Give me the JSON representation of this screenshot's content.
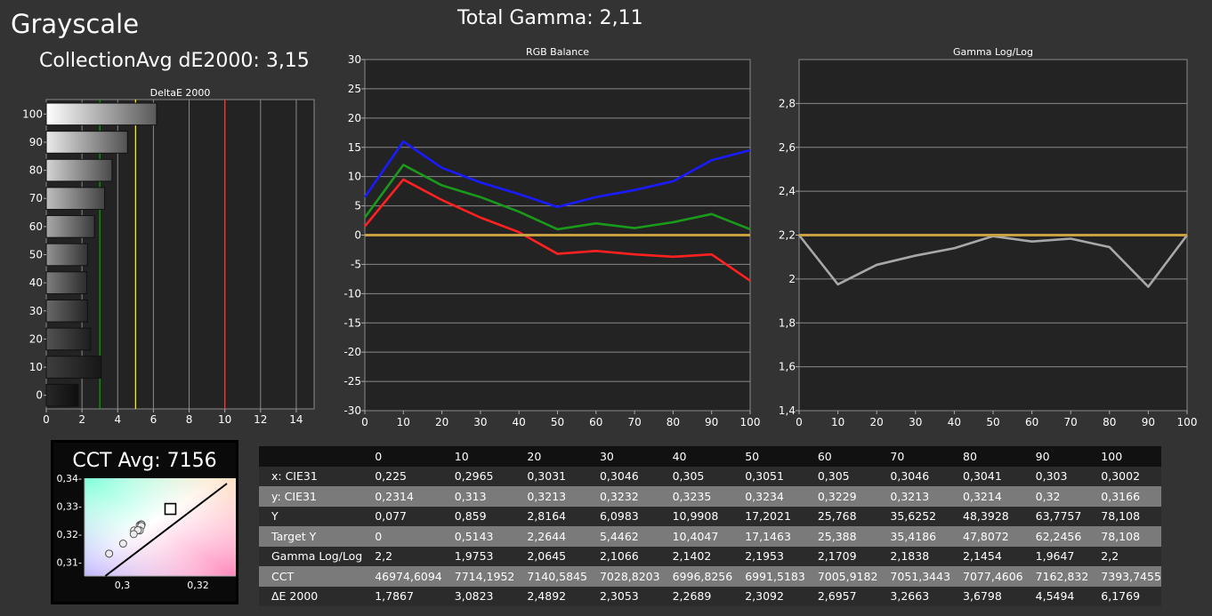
{
  "header": {
    "title": "Grayscale",
    "collection": "CollectionAvg dE2000: 3,15",
    "total_gamma": "Total Gamma: 2,11"
  },
  "colors": {
    "red": "#ff2020",
    "green": "#1a9a1a",
    "blue": "#1a1aff",
    "target": "#c8a040",
    "gamma_line": "#a8a8a8",
    "threshold_green": "#00aa00",
    "threshold_yellow": "#ffff00",
    "threshold_red": "#ff3030"
  },
  "chart_data": [
    {
      "type": "bar",
      "title": "DeltaE 2000",
      "orientation": "horizontal",
      "categories": [
        "100",
        "90",
        "80",
        "70",
        "60",
        "50",
        "40",
        "30",
        "20",
        "10",
        "0"
      ],
      "values": [
        6.1769,
        4.5494,
        3.6798,
        3.2663,
        2.6957,
        2.3092,
        2.2689,
        2.3053,
        2.4892,
        3.0823,
        1.7867
      ],
      "xlim": [
        0,
        15
      ],
      "xticks": [
        0,
        2,
        4,
        6,
        8,
        10,
        12,
        14
      ],
      "thresholds": [
        3,
        5,
        10
      ],
      "grid": true
    },
    {
      "type": "line",
      "title": "RGB Balance",
      "x": [
        0,
        10,
        20,
        30,
        40,
        50,
        60,
        70,
        80,
        90,
        100
      ],
      "ylim": [
        -30,
        30
      ],
      "yticks": [
        -30,
        -25,
        -20,
        -15,
        -10,
        -5,
        0,
        5,
        10,
        15,
        20,
        25,
        30
      ],
      "grid": true,
      "series": [
        {
          "color": "red",
          "values": [
            1.5,
            9.5,
            6,
            3,
            0.5,
            -3.2,
            -2.7,
            -3.3,
            -3.7,
            -3.3,
            -7.8
          ]
        },
        {
          "color": "green",
          "values": [
            3,
            12,
            8.5,
            6.5,
            4,
            1,
            2,
            1.2,
            2.2,
            3.6,
            1
          ]
        },
        {
          "color": "blue",
          "values": [
            6.5,
            16,
            11.5,
            9,
            7,
            4.8,
            6.5,
            7.7,
            9.2,
            12.8,
            14.5
          ]
        },
        {
          "color": "target",
          "values": [
            0,
            0,
            0,
            0,
            0,
            0,
            0,
            0,
            0,
            0,
            0
          ]
        }
      ]
    },
    {
      "type": "line",
      "title": "Gamma Log/Log",
      "x": [
        0,
        10,
        20,
        30,
        40,
        50,
        60,
        70,
        80,
        90,
        100
      ],
      "ylim": [
        1.4,
        3.0
      ],
      "yticks": [
        1.4,
        1.6,
        1.8,
        2.0,
        2.2,
        2.4,
        2.6,
        2.8
      ],
      "ytick_labels": [
        "1,4",
        "1,6",
        "1,8",
        "2",
        "2,2",
        "2,4",
        "2,6",
        "2,8"
      ],
      "grid": true,
      "series": [
        {
          "color": "gamma_line",
          "values": [
            2.2,
            1.9753,
            2.0645,
            2.1066,
            2.1402,
            2.1953,
            2.1709,
            2.1838,
            2.1454,
            1.9647,
            2.2
          ]
        },
        {
          "color": "target",
          "values": [
            2.2,
            2.2,
            2.2,
            2.2,
            2.2,
            2.2,
            2.2,
            2.2,
            2.2,
            2.2,
            2.2
          ]
        }
      ]
    },
    {
      "type": "scatter",
      "title": "CCT Avg: 7156",
      "xlim": [
        0.29,
        0.33
      ],
      "ylim": [
        0.305,
        0.34
      ],
      "xticks": [
        0.3,
        0.32
      ],
      "xtick_labels": [
        "0,3",
        "0,32"
      ],
      "yticks": [
        0.31,
        0.32,
        0.33,
        0.34
      ],
      "ytick_labels": [
        "0,31-",
        "0,32-",
        "0,33-",
        "0,34-"
      ],
      "points": [
        {
          "x": 0.2965,
          "y": 0.313
        },
        {
          "x": 0.3031,
          "y": 0.3213
        },
        {
          "x": 0.3046,
          "y": 0.3232
        },
        {
          "x": 0.305,
          "y": 0.3235
        },
        {
          "x": 0.3051,
          "y": 0.3234
        },
        {
          "x": 0.305,
          "y": 0.3229
        },
        {
          "x": 0.3046,
          "y": 0.3213
        },
        {
          "x": 0.3041,
          "y": 0.3214
        },
        {
          "x": 0.303,
          "y": 0.32
        },
        {
          "x": 0.3002,
          "y": 0.3166
        },
        {
          "x": 0.2965,
          "y": 0.313
        }
      ],
      "target": {
        "x": 0.3127,
        "y": 0.329
      }
    }
  ],
  "table": {
    "headers": [
      "",
      "0",
      "10",
      "20",
      "30",
      "40",
      "50",
      "60",
      "70",
      "80",
      "90",
      "100"
    ],
    "rows": [
      [
        "x: CIE31",
        "0,225",
        "0,2965",
        "0,3031",
        "0,3046",
        "0,305",
        "0,3051",
        "0,305",
        "0,3046",
        "0,3041",
        "0,303",
        "0,3002"
      ],
      [
        "y: CIE31",
        "0,2314",
        "0,313",
        "0,3213",
        "0,3232",
        "0,3235",
        "0,3234",
        "0,3229",
        "0,3213",
        "0,3214",
        "0,32",
        "0,3166"
      ],
      [
        "Y",
        "0,077",
        "0,859",
        "2,8164",
        "6,0983",
        "10,9908",
        "17,2021",
        "25,768",
        "35,6252",
        "48,3928",
        "63,7757",
        "78,108"
      ],
      [
        "Target Y",
        "0",
        "0,5143",
        "2,2644",
        "5,4462",
        "10,4047",
        "17,1463",
        "25,388",
        "35,4186",
        "47,8072",
        "62,2456",
        "78,108"
      ],
      [
        "Gamma Log/Log",
        "2,2",
        "1,9753",
        "2,0645",
        "2,1066",
        "2,1402",
        "2,1953",
        "2,1709",
        "2,1838",
        "2,1454",
        "1,9647",
        "2,2"
      ],
      [
        "CCT",
        "46974,6094",
        "7714,1952",
        "7140,5845",
        "7028,8203",
        "6996,8256",
        "6991,5183",
        "7005,9182",
        "7051,3443",
        "7077,4606",
        "7162,832",
        "7393,7455"
      ],
      [
        "ΔE 2000",
        "1,7867",
        "3,0823",
        "2,4892",
        "2,3053",
        "2,2689",
        "2,3092",
        "2,6957",
        "3,2663",
        "3,6798",
        "4,5494",
        "6,1769"
      ]
    ]
  }
}
